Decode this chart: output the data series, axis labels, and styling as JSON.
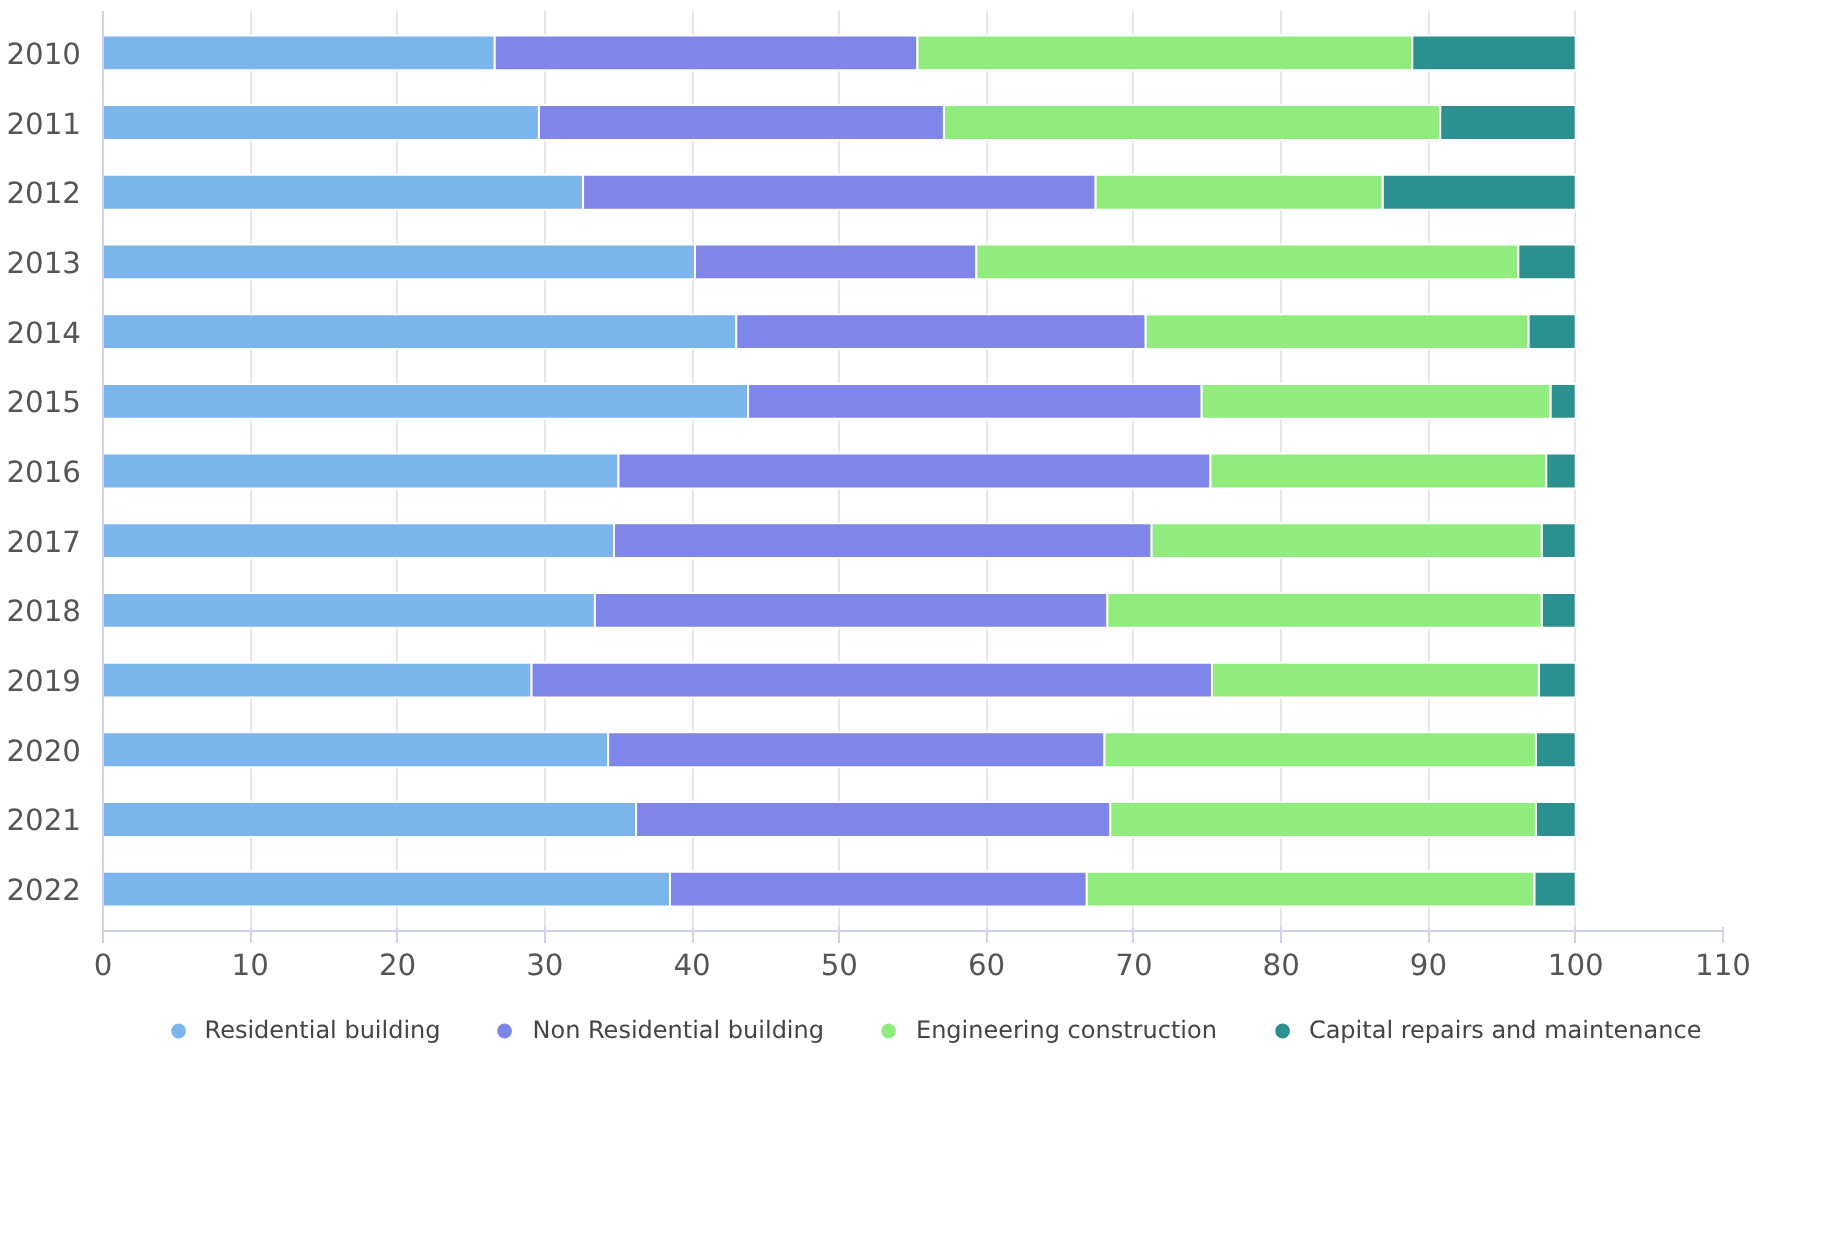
{
  "chart_data": {
    "type": "bar",
    "orientation": "horizontal",
    "stacked": true,
    "categories": [
      "2010",
      "2011",
      "2012",
      "2013",
      "2014",
      "2015",
      "2016",
      "2017",
      "2018",
      "2019",
      "2020",
      "2021",
      "2022"
    ],
    "series": [
      {
        "name": "Residential building",
        "color": "#7cb5ec",
        "values": [
          26.6,
          29.6,
          32.6,
          40.2,
          43.0,
          43.8,
          35.0,
          34.7,
          33.4,
          29.1,
          34.3,
          36.2,
          38.5
        ]
      },
      {
        "name": "Non Residential building",
        "color": "#8085e9",
        "values": [
          28.7,
          27.5,
          34.8,
          19.1,
          27.8,
          30.8,
          40.2,
          36.5,
          34.8,
          46.2,
          33.7,
          32.2,
          28.3
        ]
      },
      {
        "name": "Engineering construction",
        "color": "#90ed7d",
        "values": [
          33.6,
          33.7,
          19.5,
          36.8,
          26.0,
          23.7,
          22.8,
          26.5,
          29.5,
          22.2,
          29.3,
          28.9,
          30.4
        ]
      },
      {
        "name": "Capital repairs and maintenance",
        "color": "#2b908f",
        "values": [
          11.1,
          9.2,
          13.1,
          3.9,
          3.2,
          1.7,
          2.0,
          2.3,
          2.3,
          2.5,
          2.7,
          2.7,
          2.8
        ]
      }
    ],
    "xlim": [
      0,
      110
    ],
    "xticks": [
      0,
      10,
      20,
      30,
      40,
      50,
      60,
      70,
      80,
      90,
      100,
      110
    ],
    "grid": "x",
    "legend": "bottom"
  }
}
